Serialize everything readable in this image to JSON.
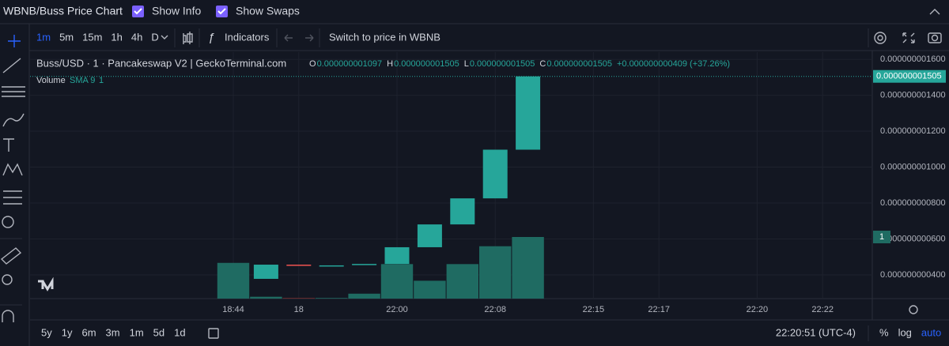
{
  "header": {
    "title": "WBNB/Buss Price Chart",
    "show_info": "Show Info",
    "show_swaps": "Show Swaps"
  },
  "toolbar": {
    "intervals": [
      "1m",
      "5m",
      "15m",
      "1h",
      "4h",
      "D"
    ],
    "indicators": "Indicators",
    "switch": "Switch to price in WBNB"
  },
  "bottom_bar": {
    "ranges": [
      "5y",
      "1y",
      "6m",
      "3m",
      "1m",
      "5d",
      "1d"
    ],
    "time": "22:20:51 (UTC-4)",
    "scale_options": [
      "%",
      "log",
      "auto"
    ]
  },
  "chart_data": {
    "type": "candlestick",
    "title": "Buss/USD · 1 · Pancakeswap V2 | GeckoTerminal.com",
    "legend_values": [
      {
        "label": "O",
        "value": "0.000000001097"
      },
      {
        "label": "H",
        "value": "0.000000001505"
      },
      {
        "label": "L",
        "value": "0.000000001505"
      },
      {
        "label": "C",
        "value": "0.000000001505"
      }
    ],
    "change": "+0.000000000409 (+37.26%)",
    "volume_title": "Volume",
    "volume_indicator": "SMA 9",
    "last_price_label": "0.000000001505",
    "categories": [
      "18:44",
      null,
      "18",
      null,
      null,
      "22:00",
      null,
      null,
      "22:08",
      null,
      null,
      "22:15",
      null,
      "22:17",
      null,
      null,
      "22:20",
      null,
      "22:22"
    ],
    "open": [
      null,
      3.78e-10,
      4.57e-10,
      4.53e-10,
      4.57e-10,
      4.61e-10,
      5.54e-10,
      6.81e-10,
      8.26e-10,
      1.097e-09,
      null,
      null,
      null,
      null,
      null,
      null,
      null,
      null,
      null
    ],
    "close": [
      null,
      4.57e-10,
      4.55e-10,
      4.53e-10,
      4.61e-10,
      5.54e-10,
      6.81e-10,
      8.26e-10,
      1.097e-09,
      1.505e-09,
      null,
      null,
      null,
      null,
      null,
      null,
      null,
      null,
      null
    ],
    "volume": [
      0.58,
      0.03,
      0.01,
      0.01,
      0.08,
      0.56,
      0.29,
      0.56,
      0.85,
      1,
      null,
      null,
      null,
      null,
      null,
      null,
      null,
      null,
      null
    ],
    "up_color": "#26a69a",
    "down_color": "#ef5350",
    "volume_up_color": "#1f6b62",
    "volume_down_color": "#7a2f2f",
    "ylim": [
      2.68e-10,
      1.64e-09
    ],
    "yticks": [
      {
        "value": 1.6e-09,
        "label": "0.000000001600"
      },
      {
        "value": 1.4e-09,
        "label": "0.000000001400"
      },
      {
        "value": 1.2e-09,
        "label": "0.000000001200"
      },
      {
        "value": 1e-09,
        "label": "0.000000001000"
      },
      {
        "value": 8e-10,
        "label": "0.000000000800"
      },
      {
        "value": 6e-10,
        "label": "0.000000000600"
      },
      {
        "value": 4e-10,
        "label": "0.000000000400"
      }
    ],
    "grid": true
  }
}
